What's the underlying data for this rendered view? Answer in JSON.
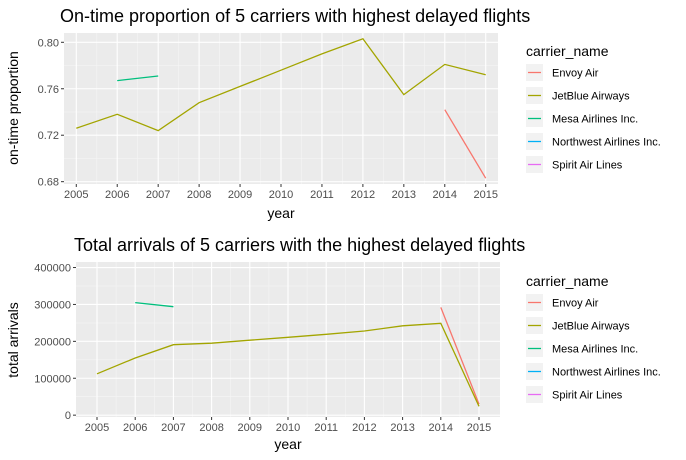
{
  "chart_data": [
    {
      "type": "line",
      "title": "On-time proportion of 5 carriers with highest delayed flights",
      "xlabel": "year",
      "ylabel": "on-time proportion",
      "x_ticks": [
        2005,
        2006,
        2007,
        2008,
        2009,
        2010,
        2011,
        2012,
        2013,
        2014,
        2015
      ],
      "xlim": [
        2004.7,
        2015.3
      ],
      "ylim": [
        0.678,
        0.808
      ],
      "y_ticks": [
        0.68,
        0.72,
        0.76,
        0.8
      ],
      "y_tick_labels": [
        "0.68",
        "0.72",
        "0.76",
        "0.80"
      ],
      "grid": true,
      "legend": {
        "title": "carrier_name",
        "placement": "right",
        "entries": [
          {
            "name": "Envoy Air",
            "color": "#F8766D"
          },
          {
            "name": "JetBlue Airways",
            "color": "#A3A500"
          },
          {
            "name": "Mesa Airlines Inc.",
            "color": "#00BF7D"
          },
          {
            "name": "Northwest Airlines Inc.",
            "color": "#00B0F6"
          },
          {
            "name": "Spirit Air Lines",
            "color": "#E76BF3"
          }
        ]
      },
      "series": [
        {
          "name": "Envoy Air",
          "color": "#F8766D",
          "points": [
            [
              2014,
              0.742
            ],
            [
              2015,
              0.683
            ]
          ]
        },
        {
          "name": "JetBlue Airways",
          "color": "#A3A500",
          "points": [
            [
              2005,
              0.726
            ],
            [
              2006,
              0.738
            ],
            [
              2007,
              0.724
            ],
            [
              2008,
              0.748
            ],
            [
              2009,
              0.762
            ],
            [
              2010,
              0.776
            ],
            [
              2011,
              0.79
            ],
            [
              2012,
              0.803
            ],
            [
              2013,
              0.755
            ],
            [
              2014,
              0.781
            ],
            [
              2015,
              0.772
            ]
          ]
        },
        {
          "name": "Mesa Airlines Inc.",
          "color": "#00BF7D",
          "points": [
            [
              2006,
              0.767
            ],
            [
              2007,
              0.771
            ]
          ]
        }
      ]
    },
    {
      "type": "line",
      "title": "Total arrivals of 5 carriers with the highest delayed flights",
      "xlabel": "year",
      "ylabel": "total arrivals",
      "x_ticks": [
        2005,
        2006,
        2007,
        2008,
        2009,
        2010,
        2011,
        2012,
        2013,
        2014,
        2015
      ],
      "xlim": [
        2004.45,
        2015.55
      ],
      "ylim": [
        -5000,
        415000
      ],
      "y_ticks": [
        0,
        100000,
        200000,
        300000,
        400000
      ],
      "y_tick_labels": [
        "0",
        "100000",
        "200000",
        "300000",
        "400000"
      ],
      "grid": true,
      "legend": {
        "title": "carrier_name",
        "placement": "right",
        "entries": [
          {
            "name": "Envoy Air",
            "color": "#F8766D"
          },
          {
            "name": "JetBlue Airways",
            "color": "#A3A500"
          },
          {
            "name": "Mesa Airlines Inc.",
            "color": "#00BF7D"
          },
          {
            "name": "Northwest Airlines Inc.",
            "color": "#00B0F6"
          },
          {
            "name": "Spirit Air Lines",
            "color": "#E76BF3"
          }
        ]
      },
      "series": [
        {
          "name": "Envoy Air",
          "color": "#F8766D",
          "points": [
            [
              2014,
              292000
            ],
            [
              2015,
              30000
            ]
          ]
        },
        {
          "name": "JetBlue Airways",
          "color": "#A3A500",
          "points": [
            [
              2005,
              112000
            ],
            [
              2006,
              155000
            ],
            [
              2007,
              191000
            ],
            [
              2008,
              195000
            ],
            [
              2009,
              203000
            ],
            [
              2010,
              211000
            ],
            [
              2011,
              219000
            ],
            [
              2012,
              228000
            ],
            [
              2013,
              242000
            ],
            [
              2014,
              249000
            ],
            [
              2015,
              24000
            ]
          ]
        },
        {
          "name": "Mesa Airlines Inc.",
          "color": "#00BF7D",
          "points": [
            [
              2006,
              305000
            ],
            [
              2007,
              294000
            ]
          ]
        }
      ]
    }
  ]
}
